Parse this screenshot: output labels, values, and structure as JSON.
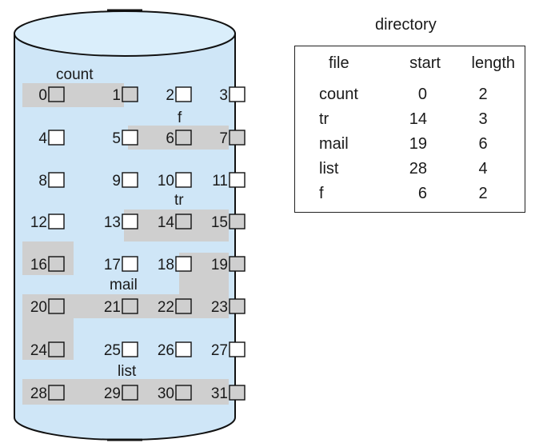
{
  "disk": {
    "labels": [
      "count",
      "f",
      "tr",
      "mail",
      "list"
    ],
    "block_count": 32,
    "colors": {
      "disk_fill": "#cfe6f7",
      "disk_top": "#daeefb",
      "highlight": "#cfcfcf",
      "box_empty": "#ffffff",
      "box_used": "#cfcfcf",
      "stroke": "#111111"
    }
  },
  "directory": {
    "title": "directory",
    "headers": {
      "file": "file",
      "start": "start",
      "length": "length"
    },
    "rows": [
      {
        "file": "count",
        "start": "0",
        "length": "2"
      },
      {
        "file": "tr",
        "start": "14",
        "length": "3"
      },
      {
        "file": "mail",
        "start": "19",
        "length": "6"
      },
      {
        "file": "list",
        "start": "28",
        "length": "4"
      },
      {
        "file": "f",
        "start": "6",
        "length": "2"
      }
    ]
  }
}
